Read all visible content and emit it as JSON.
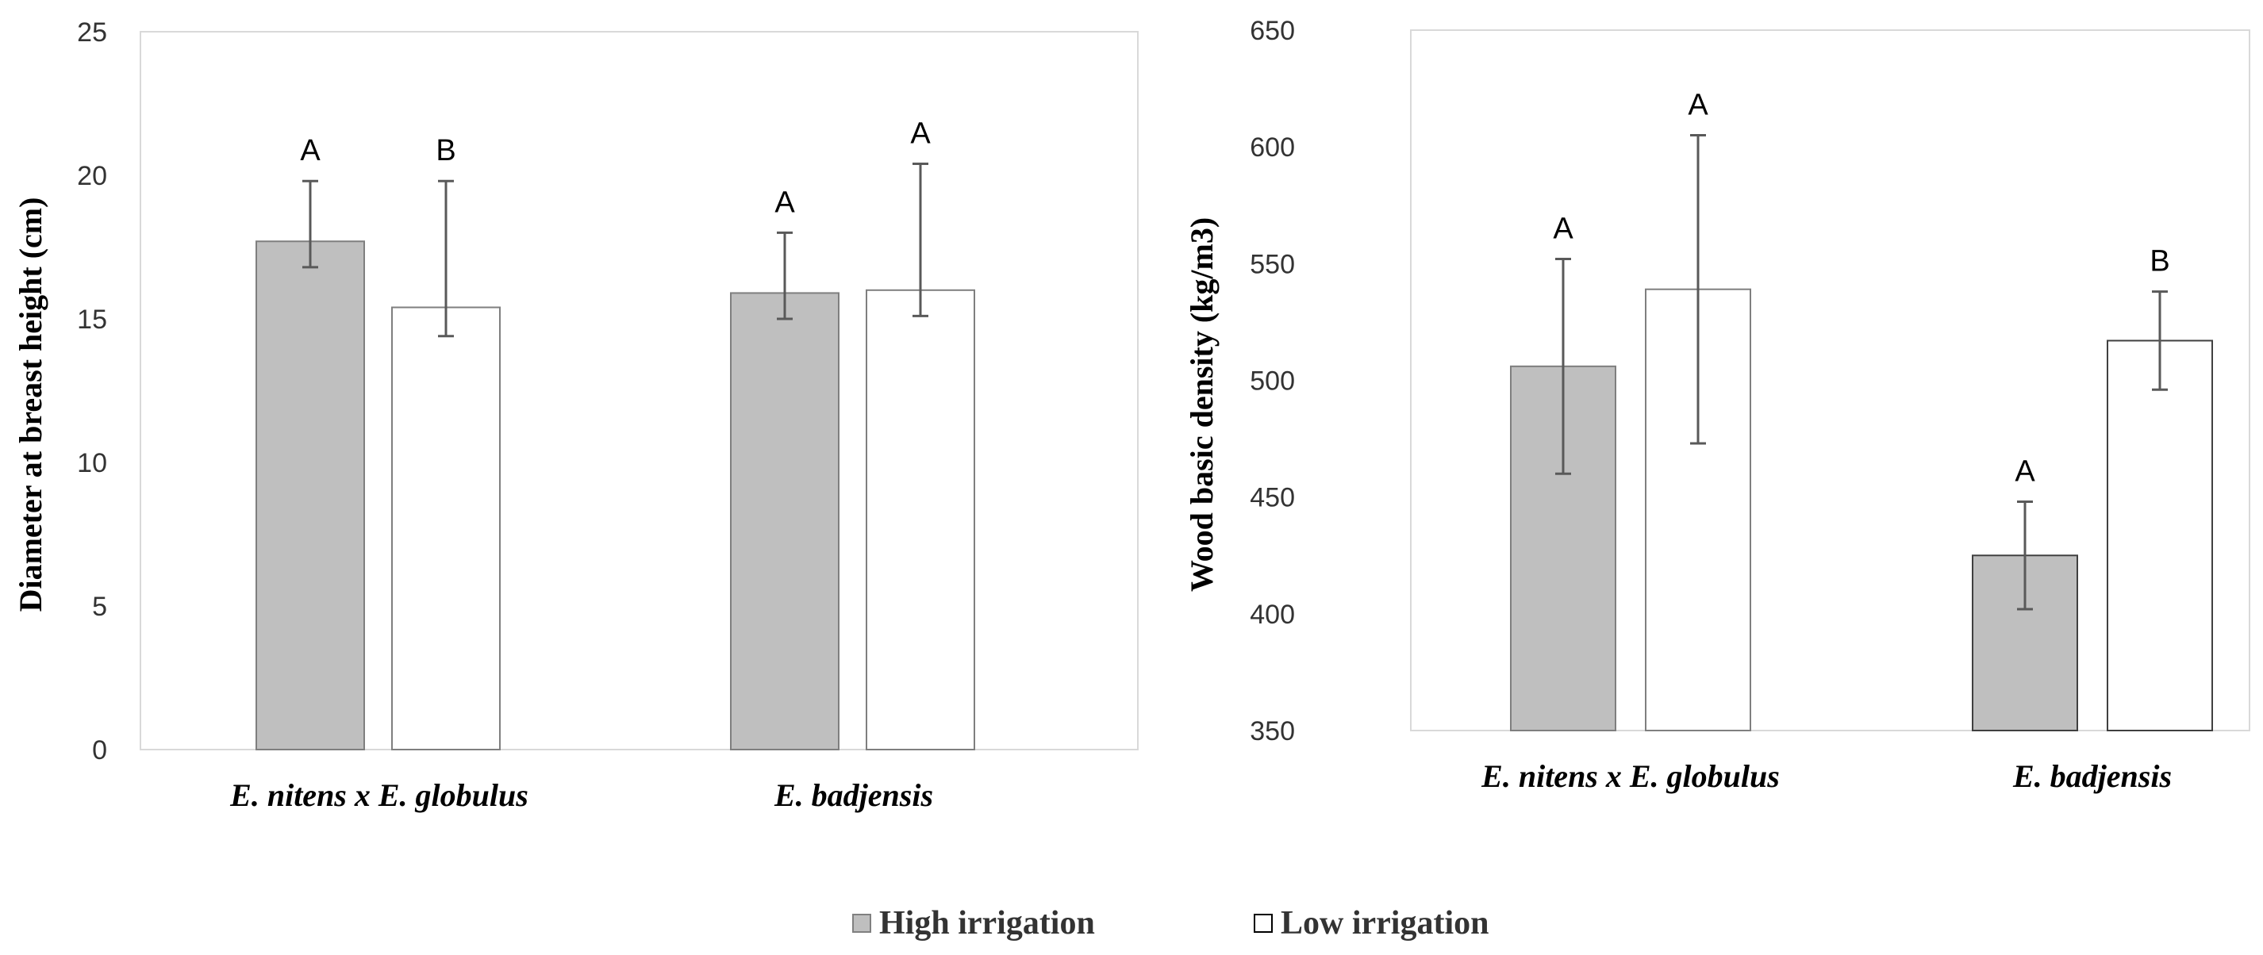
{
  "colors": {
    "high": "#bfbfbf",
    "low": "#ffffff",
    "error": "#595959",
    "frame": "#d9d9d9"
  },
  "legend": [
    {
      "name": "High irrigation",
      "color": "#bfbfbf"
    },
    {
      "name": "Low irrigation",
      "color": "#ffffff"
    }
  ],
  "chart_data": [
    {
      "type": "bar",
      "categories": [
        "E. nitens x E. globulus",
        "E. badjensis"
      ],
      "ylabel": "Diameter at breast height  (cm)",
      "ylim": [
        0,
        25
      ],
      "yticks": [
        0,
        5,
        10,
        15,
        20,
        25
      ],
      "series": [
        {
          "name": "High irrigation",
          "values": [
            17.7,
            15.9
          ],
          "err_low": [
            16.8,
            15.0
          ],
          "err_high": [
            19.8,
            18.0
          ],
          "labels": [
            "A",
            "A"
          ]
        },
        {
          "name": "Low irrigation",
          "values": [
            15.4,
            16.0
          ],
          "err_low": [
            14.4,
            15.1
          ],
          "err_high": [
            19.8,
            20.4
          ],
          "labels": [
            "B",
            "A"
          ]
        }
      ]
    },
    {
      "type": "bar",
      "categories": [
        "E. nitens x E. globulus",
        "E. badjensis"
      ],
      "ylabel": "Wood basic density (kg/m3)",
      "ylim": [
        350,
        650
      ],
      "yticks": [
        350,
        400,
        450,
        500,
        550,
        600,
        650
      ],
      "series": [
        {
          "name": "High irrigation",
          "values": [
            506,
            425
          ],
          "err_low": [
            460,
            402
          ],
          "err_high": [
            552,
            448
          ],
          "labels": [
            "A",
            "A"
          ]
        },
        {
          "name": "Low irrigation",
          "values": [
            539,
            517
          ],
          "err_low": [
            473,
            496
          ],
          "err_high": [
            605,
            538
          ],
          "labels": [
            "A",
            "B"
          ]
        }
      ]
    }
  ]
}
